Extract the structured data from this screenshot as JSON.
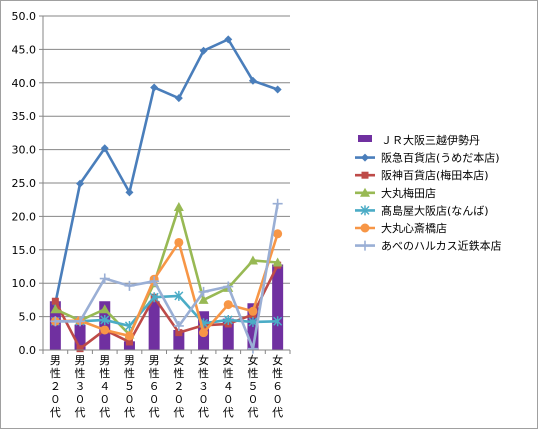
{
  "chart_data": {
    "type": "bar+line",
    "title": "",
    "xlabel": "",
    "ylabel": "",
    "ylim": [
      0,
      50
    ],
    "yticks": [
      "0.0",
      "5.0",
      "10.0",
      "15.0",
      "20.0",
      "25.0",
      "30.0",
      "35.0",
      "40.0",
      "45.0",
      "50.0"
    ],
    "categories": [
      "男性２０代",
      "男性３０代",
      "男性４０代",
      "男性５０代",
      "男性６０代",
      "女性２０代",
      "女性３０代",
      "女性４０代",
      "女性５０代",
      "女性６０代"
    ],
    "grid": "horizontal",
    "legend_position": "right",
    "series": [
      {
        "name": "ＪＲ大阪三越伊勢丹",
        "kind": "bar",
        "color": "#7030a0",
        "marker": "bar",
        "values": [
          7.3,
          3.8,
          7.3,
          1.3,
          7.3,
          3.0,
          5.8,
          4.7,
          7.0,
          12.8
        ]
      },
      {
        "name": "阪急百貨店(うめだ本店)",
        "kind": "line",
        "color": "#4a7ebb",
        "marker": "diamond",
        "values": [
          7.0,
          24.9,
          30.2,
          23.6,
          39.3,
          37.7,
          44.8,
          46.5,
          40.3,
          39.0
        ]
      },
      {
        "name": "阪神百貨店(梅田本店)",
        "kind": "line",
        "color": "#be4b48",
        "marker": "square",
        "values": [
          7.3,
          0.2,
          3.0,
          1.2,
          7.9,
          2.6,
          3.7,
          3.9,
          5.3,
          12.7
        ]
      },
      {
        "name": "大丸梅田店",
        "kind": "line",
        "color": "#98b954",
        "marker": "triangle",
        "values": [
          6.1,
          4.4,
          6.1,
          2.3,
          10.0,
          21.4,
          7.5,
          9.3,
          13.4,
          13.1
        ]
      },
      {
        "name": "髙島屋大阪店(なんば)",
        "kind": "line",
        "color": "#4bacc6",
        "marker": "star",
        "values": [
          4.3,
          4.3,
          4.5,
          3.6,
          7.9,
          8.1,
          4.0,
          4.5,
          4.2,
          4.3
        ]
      },
      {
        "name": "大丸心斎橋店",
        "kind": "line",
        "color": "#f79646",
        "marker": "circle",
        "values": [
          4.3,
          4.4,
          3.0,
          2.1,
          10.6,
          16.1,
          2.6,
          6.8,
          5.8,
          17.4
        ]
      },
      {
        "name": "あべのハルカス近鉄本店",
        "kind": "line",
        "color": "#9aafd5",
        "marker": "plus",
        "values": [
          4.3,
          4.3,
          10.7,
          9.6,
          10.3,
          3.6,
          8.7,
          9.5,
          0.2,
          21.9
        ]
      }
    ]
  }
}
